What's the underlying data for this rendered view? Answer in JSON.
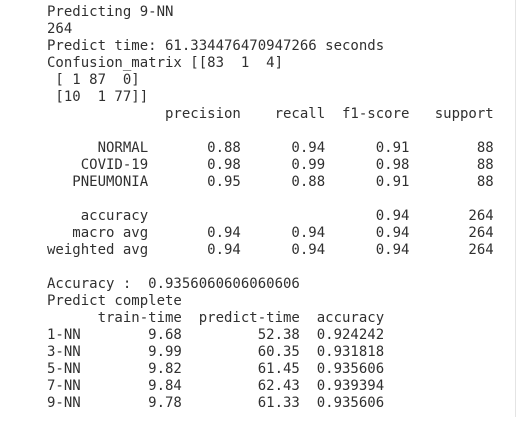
{
  "terminal": {
    "blocks": [
      [
        "Predicting 9-NN",
        "264",
        "Predict time: 61.334476470947266 seconds",
        "Confusion_matrix [[83  1  4]",
        " [ 1 87  0]",
        " [10  1 77]]",
        "              precision    recall  f1-score   support"
      ],
      [
        "      NORMAL       0.88      0.94      0.91        88",
        "    COVID-19       0.98      0.99      0.98        88",
        "   PNEUMONIA       0.95      0.88      0.91        88"
      ],
      [
        "    accuracy                           0.94       264",
        "   macro avg       0.94      0.94      0.94       264",
        "weighted avg       0.94      0.94      0.94       264"
      ],
      [
        "Accuracy :  0.9356060606060606",
        "Predict complete",
        "      train-time  predict-time  accuracy",
        "1-NN        9.68         52.38  0.924242",
        "3-NN        9.99         60.35  0.931818",
        "5-NN        9.82         61.45  0.935606",
        "7-NN        9.84         62.43  0.939394",
        "9-NN        9.78         61.33  0.935606"
      ]
    ]
  }
}
